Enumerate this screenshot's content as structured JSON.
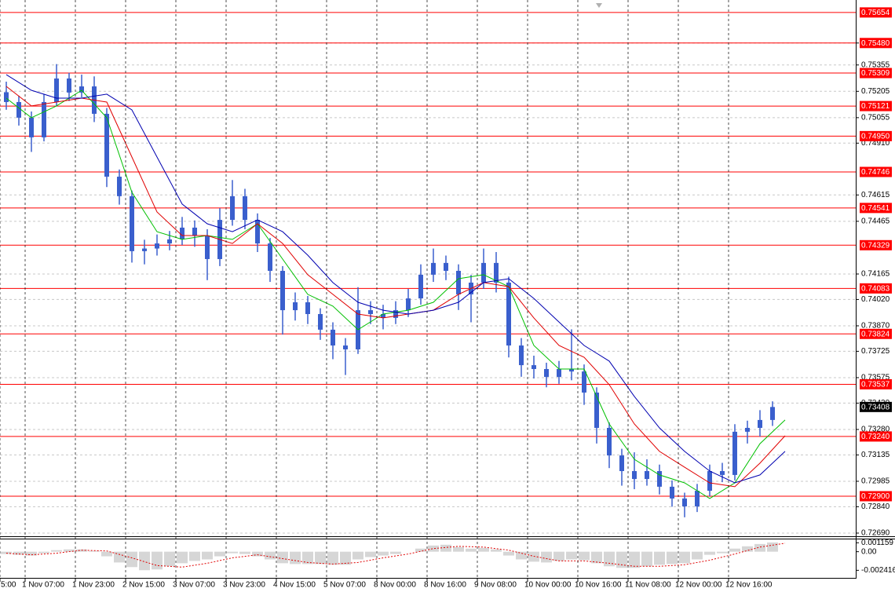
{
  "chart_data": {
    "type": "candlestick",
    "xlim": [
      -8,
      264
    ],
    "ylim": [
      0.72672,
      0.75707
    ],
    "grid": true,
    "xticks": [
      {
        "value": -8,
        "label": "5:00"
      },
      {
        "value": 0,
        "label": "1 Nov 07:00"
      },
      {
        "value": 16,
        "label": "1 Nov 23:00"
      },
      {
        "value": 32,
        "label": "2 Nov 15:00"
      },
      {
        "value": 48,
        "label": "3 Nov 07:00"
      },
      {
        "value": 64,
        "label": "3 Nov 23:00"
      },
      {
        "value": 80,
        "label": "4 Nov 15:00"
      },
      {
        "value": 96,
        "label": "5 Nov 07:00"
      },
      {
        "value": 112,
        "label": "8 Nov 00:00"
      },
      {
        "value": 128,
        "label": "8 Nov 16:00"
      },
      {
        "value": 144,
        "label": "9 Nov 08:00"
      },
      {
        "value": 160,
        "label": "10 Nov 00:00"
      },
      {
        "value": 176,
        "label": "10 Nov 16:00"
      },
      {
        "value": 192,
        "label": "11 Nov 08:00"
      },
      {
        "value": 208,
        "label": "12 Nov 00:00"
      },
      {
        "value": 224,
        "label": "12 Nov 16:00"
      }
    ],
    "yticks": [
      {
        "value": 0.7548,
        "label": "0.75480"
      },
      0.75355,
      0.75205,
      0.75055,
      {
        "value": 0.7491,
        "label": "0.74910"
      },
      0.74615,
      0.74465,
      0.74165,
      {
        "value": 0.7402,
        "label": "0.74020"
      },
      {
        "value": 0.7387,
        "label": "0.73870"
      },
      0.73725,
      0.73575,
      {
        "value": 0.7343,
        "label": "0.73430"
      },
      {
        "value": 0.7328,
        "label": "0.73280"
      },
      0.73135,
      0.72985,
      {
        "value": 0.7284,
        "label": "0.72840"
      },
      {
        "value": 0.7269,
        "label": "0.72690"
      }
    ],
    "candles": {
      "color": "#3a5fcd",
      "x": [
        -6,
        -2,
        2,
        6,
        10,
        14,
        18,
        22,
        26,
        30,
        34,
        38,
        42,
        46,
        50,
        54,
        58,
        62,
        66,
        70,
        74,
        78,
        82,
        86,
        90,
        94,
        98,
        102,
        106,
        110,
        114,
        118,
        122,
        126,
        130,
        134,
        138,
        142,
        146,
        150,
        154,
        158,
        162,
        166,
        170,
        174,
        178,
        182,
        186,
        190,
        194,
        198,
        202,
        206,
        210,
        214,
        218,
        222,
        226,
        230,
        234,
        238
      ],
      "ohlc": [
        [
          0.752,
          0.7526,
          0.751,
          0.75144
        ],
        [
          0.75144,
          0.7518,
          0.7501,
          0.75055
        ],
        [
          0.75055,
          0.7509,
          0.7486,
          0.74943
        ],
        [
          0.74943,
          0.7519,
          0.7492,
          0.75144
        ],
        [
          0.75144,
          0.7536,
          0.7512,
          0.75278
        ],
        [
          0.75278,
          0.7531,
          0.7515,
          0.75198
        ],
        [
          0.75198,
          0.753,
          0.7517,
          0.75233
        ],
        [
          0.75233,
          0.7529,
          0.7503,
          0.75077
        ],
        [
          0.75077,
          0.7511,
          0.7466,
          0.74719
        ],
        [
          0.74719,
          0.7476,
          0.7456,
          0.74608
        ],
        [
          0.74608,
          0.7464,
          0.7423,
          0.74295
        ],
        [
          0.74295,
          0.7436,
          0.7422,
          0.7431
        ],
        [
          0.7431,
          0.7439,
          0.7427,
          0.74339
        ],
        [
          0.74339,
          0.7441,
          0.743,
          0.74362
        ],
        [
          0.74362,
          0.7449,
          0.7433,
          0.74429
        ],
        [
          0.74429,
          0.7447,
          0.7432,
          0.74384
        ],
        [
          0.74384,
          0.7442,
          0.7413,
          0.7425
        ],
        [
          0.7425,
          0.7454,
          0.7421,
          0.74473
        ],
        [
          0.74473,
          0.747,
          0.7444,
          0.74608
        ],
        [
          0.74608,
          0.7465,
          0.7442,
          0.74473
        ],
        [
          0.74473,
          0.7451,
          0.7429,
          0.74339
        ],
        [
          0.74339,
          0.7437,
          0.7412,
          0.74183
        ],
        [
          0.74183,
          0.7421,
          0.7382,
          0.73959
        ],
        [
          0.73959,
          0.7406,
          0.739,
          0.74004
        ],
        [
          0.74004,
          0.7404,
          0.7388,
          0.73937
        ],
        [
          0.73937,
          0.7397,
          0.7379,
          0.73848
        ],
        [
          0.73848,
          0.7389,
          0.7368,
          0.73758
        ],
        [
          0.73758,
          0.738,
          0.7359,
          0.73736
        ],
        [
          0.73736,
          0.7409,
          0.7371,
          0.73959
        ],
        [
          0.73959,
          0.7401,
          0.7388,
          0.73937
        ],
        [
          0.73937,
          0.7399,
          0.7385,
          0.73915
        ],
        [
          0.73915,
          0.7401,
          0.7388,
          0.73959
        ],
        [
          0.73959,
          0.7408,
          0.7392,
          0.74026
        ],
        [
          0.74026,
          0.7422,
          0.7399,
          0.74161
        ],
        [
          0.74161,
          0.7431,
          0.7412,
          0.74228
        ],
        [
          0.74228,
          0.7427,
          0.7413,
          0.74183
        ],
        [
          0.74183,
          0.7422,
          0.7396,
          0.74049
        ],
        [
          0.74049,
          0.7416,
          0.7389,
          0.74116
        ],
        [
          0.74116,
          0.7431,
          0.7408,
          0.74228
        ],
        [
          0.74228,
          0.7429,
          0.7406,
          0.74116
        ],
        [
          0.74116,
          0.7415,
          0.7369,
          0.73758
        ],
        [
          0.73758,
          0.738,
          0.7358,
          0.73646
        ],
        [
          0.73646,
          0.737,
          0.7357,
          0.73624
        ],
        [
          0.73624,
          0.7366,
          0.7352,
          0.73579
        ],
        [
          0.73579,
          0.7367,
          0.7354,
          0.73624
        ],
        [
          0.73624,
          0.7385,
          0.7356,
          0.7361
        ],
        [
          0.7361,
          0.7365,
          0.7342,
          0.7349
        ],
        [
          0.7349,
          0.7352,
          0.732,
          0.73289
        ],
        [
          0.73289,
          0.7332,
          0.7306,
          0.73132
        ],
        [
          0.73132,
          0.7317,
          0.7296,
          0.73043
        ],
        [
          0.73043,
          0.7315,
          0.7294,
          0.72998
        ],
        [
          0.72998,
          0.7311,
          0.7296,
          0.73043
        ],
        [
          0.73043,
          0.7308,
          0.7291,
          0.72954
        ],
        [
          0.72954,
          0.7299,
          0.7284,
          0.72887
        ],
        [
          0.72887,
          0.7292,
          0.7278,
          0.72842
        ],
        [
          0.72842,
          0.7297,
          0.7281,
          0.72931
        ],
        [
          0.72931,
          0.7308,
          0.729,
          0.73043
        ],
        [
          0.73043,
          0.7309,
          0.7298,
          0.73021
        ],
        [
          0.73021,
          0.7331,
          0.7299,
          0.73267
        ],
        [
          0.73267,
          0.7333,
          0.732,
          0.73289
        ],
        [
          0.73289,
          0.7339,
          0.7324,
          0.73334
        ],
        [
          0.73334,
          0.7344,
          0.733,
          0.73408
        ]
      ]
    },
    "lines": {
      "x": [
        -6,
        2,
        10,
        18,
        26,
        34,
        42,
        50,
        58,
        66,
        74,
        82,
        90,
        98,
        106,
        114,
        122,
        130,
        138,
        146,
        154,
        162,
        170,
        178,
        186,
        194,
        202,
        210,
        218,
        226,
        234,
        242
      ],
      "series": [
        {
          "color": "#00c000",
          "values": [
            0.75166,
            0.75055,
            0.75122,
            0.75211,
            0.75055,
            0.7463,
            0.74406,
            0.74362,
            0.74384,
            0.74362,
            0.74451,
            0.7425,
            0.74049,
            0.73982,
            0.73848,
            0.73937,
            0.73959,
            0.74004,
            0.74138,
            0.74161,
            0.74093,
            0.73758,
            0.73624,
            0.73624,
            0.73311,
            0.7311,
            0.73021,
            0.72976,
            0.72887,
            0.72976,
            0.73199,
            0.73334
          ]
        },
        {
          "color": "#e00000",
          "values": [
            0.75233,
            0.75122,
            0.75144,
            0.75166,
            0.75144,
            0.74831,
            0.74518,
            0.74384,
            0.74384,
            0.74339,
            0.74451,
            0.74339,
            0.74161,
            0.74049,
            0.73937,
            0.73915,
            0.73937,
            0.73959,
            0.74049,
            0.74116,
            0.74093,
            0.73915,
            0.73758,
            0.73691,
            0.73535,
            0.73311,
            0.73155,
            0.73065,
            0.72976,
            0.72954,
            0.73088,
            0.73244
          ]
        },
        {
          "color": "#0000b0",
          "values": [
            0.753,
            0.75211,
            0.75166,
            0.75166,
            0.75189,
            0.75099,
            0.74831,
            0.74563,
            0.74451,
            0.74406,
            0.74473,
            0.74406,
            0.74272,
            0.74116,
            0.74004,
            0.73959,
            0.73937,
            0.73959,
            0.74004,
            0.74116,
            0.74138,
            0.74026,
            0.73892,
            0.73758,
            0.73669,
            0.73468,
            0.73289,
            0.73155,
            0.73043,
            0.72976,
            0.73021,
            0.73155
          ]
        }
      ]
    },
    "levels": {
      "color": "#ff0000",
      "values": [
        0.75654,
        {
          "value": 0.7548,
          "label": "0.75480"
        },
        0.75309,
        0.75121,
        {
          "value": 0.7495,
          "label": "0.74950"
        },
        0.74746,
        0.74541,
        0.74329,
        0.74083,
        0.73824,
        0.73537,
        {
          "value": 0.7324,
          "label": "0.73240"
        },
        {
          "value": 0.729,
          "label": "0.72900"
        }
      ]
    },
    "current_price": {
      "value": 0.73408,
      "color": "#000000"
    },
    "oscillator": {
      "ylim": [
        -0.0034,
        0.0017
      ],
      "yticks": [
        0.001159,
        {
          "value": 0,
          "label": "0.00"
        },
        -0.002416
      ],
      "histogram_color": "#b4b4b4",
      "signal_color": "#e00000",
      "histogram": [
        -0.0003,
        -0.0004,
        -0.0005,
        -0.0002,
        0.0002,
        0.0003,
        0.0003,
        0.0001,
        -0.0006,
        -0.0014,
        -0.002,
        -0.0024,
        -0.0023,
        -0.0019,
        -0.0015,
        -0.0012,
        -0.001,
        -0.0006,
        -0.0002,
        -0.0003,
        -0.0006,
        -0.001,
        -0.0015,
        -0.0016,
        -0.0016,
        -0.0016,
        -0.0017,
        -0.0017,
        -0.001,
        -0.0007,
        -0.0005,
        -0.0003,
        0,
        0.0004,
        0.0008,
        0.0009,
        0.0006,
        0.0004,
        0.0005,
        0.0003,
        -0.0005,
        -0.001,
        -0.0013,
        -0.0014,
        -0.0012,
        -0.001,
        -0.0011,
        -0.0015,
        -0.0019,
        -0.0021,
        -0.0021,
        -0.0019,
        -0.0017,
        -0.0016,
        -0.0015,
        -0.001,
        -0.0004,
        -0.0002,
        0.0004,
        0.0007,
        0.001,
        0.0012
      ],
      "signal": [
        -0.0002,
        -0.0004,
        -0.0002,
        0.0002,
        0.0001,
        -0.0008,
        -0.0018,
        -0.002,
        -0.0015,
        -0.0008,
        -0.0004,
        -0.0009,
        -0.0014,
        -0.0016,
        -0.0014,
        -0.0008,
        -0.0003,
        0.0004,
        0.0007,
        0.0006,
        0.0002,
        -0.0006,
        -0.0012,
        -0.0012,
        -0.0015,
        -0.0019,
        -0.0019,
        -0.0017,
        -0.0011,
        -0.0003,
        0.0006,
        0.0011
      ]
    }
  }
}
